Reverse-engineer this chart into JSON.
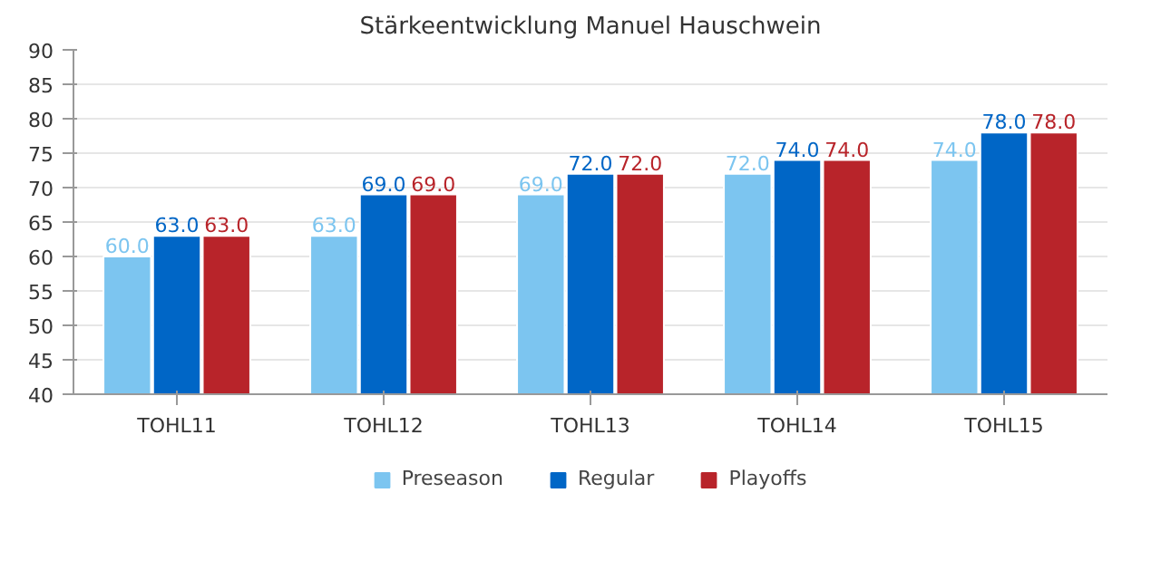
{
  "chart_data": {
    "type": "bar",
    "title": "Stärkeentwicklung Manuel Hauschwein",
    "categories": [
      "TOHL11",
      "TOHL12",
      "TOHL13",
      "TOHL14",
      "TOHL15"
    ],
    "series": [
      {
        "name": "Preseason",
        "color": "#7cc5f0",
        "values": [
          60,
          63,
          69,
          72,
          74
        ],
        "value_labels": [
          "60.0",
          "63.0",
          "69.0",
          "72.0",
          "74.0"
        ]
      },
      {
        "name": "Regular",
        "color": "#0066c6",
        "values": [
          63,
          69,
          72,
          74,
          78
        ],
        "value_labels": [
          "63.0",
          "69.0",
          "72.0",
          "74.0",
          "78.0"
        ]
      },
      {
        "name": "Playoffs",
        "color": "#b8242a",
        "values": [
          63,
          69,
          72,
          74,
          78
        ],
        "value_labels": [
          "63.0",
          "69.0",
          "72.0",
          "74.0",
          "78.0"
        ]
      }
    ],
    "ylim": [
      40,
      90
    ],
    "yticks": [
      40,
      45,
      50,
      55,
      60,
      65,
      70,
      75,
      80,
      85,
      90
    ],
    "grid": "y",
    "legend": "bottom"
  }
}
